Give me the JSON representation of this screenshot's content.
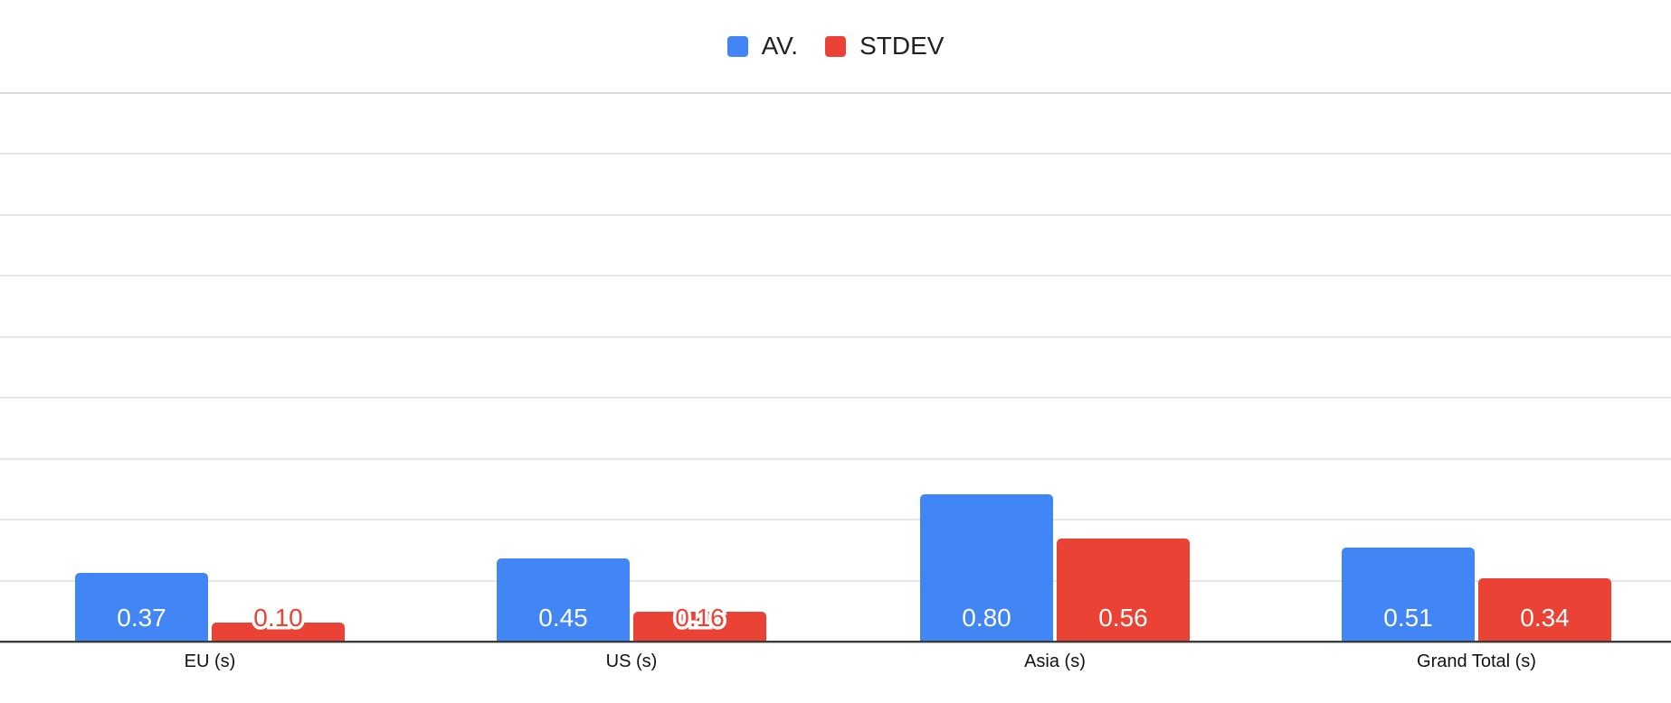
{
  "chart_data": {
    "type": "bar",
    "title": "",
    "xlabel": "",
    "ylabel": "",
    "categories": [
      "EU (s)",
      "US (s)",
      "Asia (s)",
      "Grand Total (s)"
    ],
    "series": [
      {
        "name": "AV.",
        "color": "#4285F4",
        "values": [
          0.37,
          0.45,
          0.8,
          0.51
        ],
        "labels": [
          "0.37",
          "0.45",
          "0.80",
          "0.51"
        ]
      },
      {
        "name": "STDEV",
        "color": "#EA4335",
        "values": [
          0.1,
          0.16,
          0.56,
          0.34
        ],
        "labels": [
          "0.10",
          "0.16",
          "0.56",
          "0.34"
        ]
      }
    ],
    "ylim": [
      0,
      3.0
    ],
    "gridlines": {
      "visible": true,
      "count": 9,
      "color": "#e6e6e6",
      "top_color": "#d9d9d9"
    },
    "legend_position": "top",
    "background": "#ffffff",
    "axis_color": "#3c3c3c",
    "inside_label_color": "#ffffff",
    "category_label_color": "#111111",
    "legend_text_color": "#202124"
  }
}
